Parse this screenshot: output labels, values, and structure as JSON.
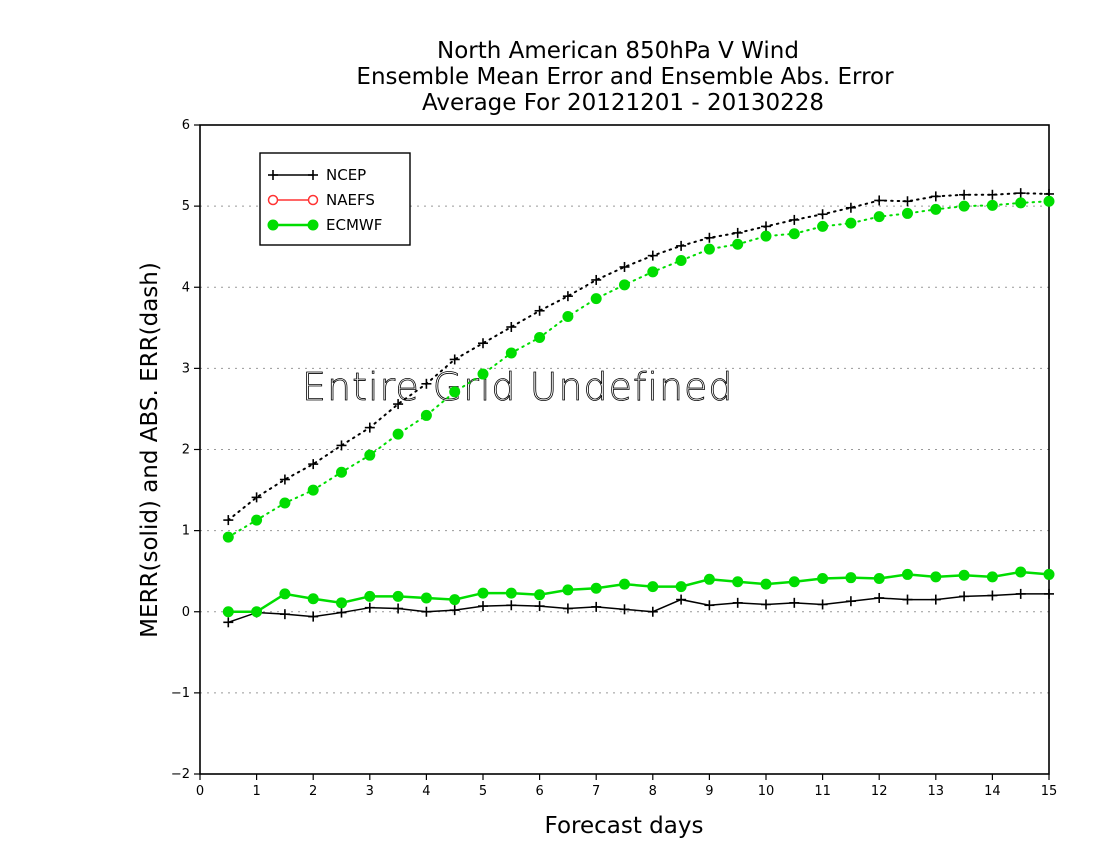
{
  "chart_data": {
    "type": "line",
    "title_lines": [
      "North American 850hPa V Wind",
      "Ensemble Mean Error and Ensemble Abs. Error",
      "Average For 20121201 - 20130228"
    ],
    "xlabel": "Forecast days",
    "ylabel": "MERR(solid) and ABS. ERR(dash)",
    "xlim": [
      0,
      15
    ],
    "ylim": [
      -2,
      6
    ],
    "xticks": [
      "0",
      "1",
      "2",
      "3",
      "4",
      "5",
      "6",
      "7",
      "8",
      "9",
      "10",
      "11",
      "12",
      "13",
      "14",
      "15"
    ],
    "yticks": [
      "−2",
      "−1",
      "0",
      "1",
      "2",
      "3",
      "4",
      "5",
      "6"
    ],
    "annotation": "Entire Grid Undefined",
    "legend_position": "top-left",
    "grid": "horizontal dotted",
    "x": [
      0.5,
      1,
      1.5,
      2,
      2.5,
      3,
      3.5,
      4,
      4.5,
      5,
      5.5,
      6,
      6.5,
      7,
      7.5,
      8,
      8.5,
      9,
      9.5,
      10,
      10.5,
      11,
      11.5,
      12,
      12.5,
      13,
      13.5,
      14,
      14.5,
      15
    ],
    "series": [
      {
        "name": "NCEP",
        "color": "#000000",
        "marker": "plus",
        "merr": [
          -0.13,
          -0.01,
          -0.03,
          -0.06,
          -0.01,
          0.05,
          0.04,
          0.0,
          0.02,
          0.07,
          0.08,
          0.07,
          0.04,
          0.06,
          0.03,
          0.0,
          0.15,
          0.08,
          0.11,
          0.09,
          0.11,
          0.09,
          0.13,
          0.17,
          0.15,
          0.15,
          0.19,
          0.2,
          0.22,
          0.22
        ],
        "abs_err": [
          1.13,
          1.41,
          1.63,
          1.82,
          2.05,
          2.27,
          2.56,
          2.81,
          3.11,
          3.31,
          3.51,
          3.71,
          3.89,
          4.09,
          4.25,
          4.39,
          4.51,
          4.61,
          4.67,
          4.75,
          4.83,
          4.9,
          4.98,
          5.07,
          5.06,
          5.12,
          5.14,
          5.14,
          5.16,
          5.15
        ]
      },
      {
        "name": "NAEFS",
        "color": "#ff3333",
        "marker": "open-circle",
        "merr": [],
        "abs_err": []
      },
      {
        "name": "ECMWF",
        "color": "#00dd00",
        "marker": "filled-circle",
        "merr": [
          0.0,
          0.0,
          0.22,
          0.16,
          0.11,
          0.19,
          0.19,
          0.17,
          0.15,
          0.23,
          0.23,
          0.21,
          0.27,
          0.29,
          0.34,
          0.31,
          0.31,
          0.4,
          0.37,
          0.34,
          0.37,
          0.41,
          0.42,
          0.41,
          0.46,
          0.43,
          0.45,
          0.43,
          0.49,
          0.46
        ],
        "abs_err": [
          0.92,
          1.13,
          1.34,
          1.5,
          1.72,
          1.93,
          2.19,
          2.42,
          2.71,
          2.93,
          3.19,
          3.38,
          3.64,
          3.86,
          4.03,
          4.19,
          4.33,
          4.47,
          4.53,
          4.63,
          4.66,
          4.75,
          4.79,
          4.87,
          4.91,
          4.96,
          5.0,
          5.01,
          5.04,
          5.06
        ]
      }
    ]
  }
}
